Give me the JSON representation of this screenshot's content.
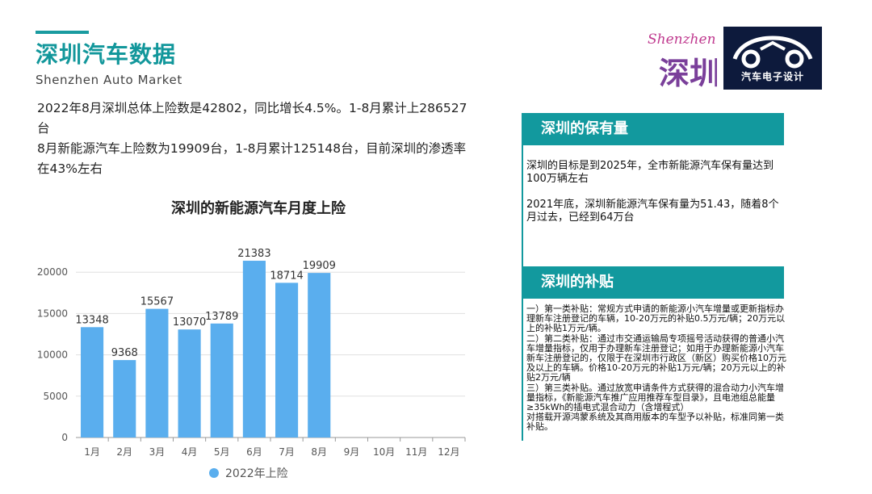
{
  "header": {
    "title": "深圳汽车数据",
    "subtitle": "Shenzhen Auto Market"
  },
  "summary": [
    "2022年8月深圳总体上险数是42802，同比增长4.5%。1-8月累计上286527台",
    "8月新能源汽车上险数为19909台，1-8月累计125148台，目前深圳的渗透率在43%左右"
  ],
  "logos": {
    "shenzhen_logo_text": "深圳",
    "shenzhen_logo_script": "Shenzhen",
    "brand_logo_text": "汽车电子设计"
  },
  "chart_data": {
    "type": "bar",
    "title": "深圳的新能源汽车月度上险",
    "categories": [
      "1月",
      "2月",
      "3月",
      "4月",
      "5月",
      "6月",
      "7月",
      "8月",
      "9月",
      "10月",
      "11月",
      "12月"
    ],
    "series": [
      {
        "name": "2022年上险",
        "values": [
          13348,
          9368,
          15567,
          13070,
          13789,
          21383,
          18714,
          19909,
          null,
          null,
          null,
          null
        ]
      }
    ],
    "ylim": [
      0,
      25000
    ],
    "yticks": [
      0,
      5000,
      10000,
      15000,
      20000
    ],
    "grid": true,
    "legend": "bottom",
    "colors": {
      "bar": "#5aaeee",
      "grid": "#e0e0e0",
      "axis": "#999999"
    }
  },
  "ownership": {
    "heading": "深圳的保有量",
    "paragraphs": [
      "深圳的目标是到2025年，全市新能源汽车保有量达到100万辆左右",
      "2021年底，深圳新能源汽车保有量为51.43，随着8个月过去，已经到64万台"
    ]
  },
  "subsidy": {
    "heading": "深圳的补贴",
    "paragraphs": [
      "一）第一类补贴：常规方式申请的新能源小汽车增量或更新指标办理新车注册登记的车辆，10-20万元的补贴0.5万元/辆；20万元以上的补贴1万元/辆。",
      "二）第二类补贴：通过市交通运输局专项摇号活动获得的普通小汽车增量指标，仅用于办理新车注册登记；如用于办理新能源小汽车新车注册登记的，仅限于在深圳市行政区（新区）购买价格10万元及以上的车辆。价格10-20万元的补贴1万元/辆；20万元以上的补贴2万元/辆",
      "三）第三类补贴。通过放宽申请条件方式获得的混合动力小汽车增量指标，《新能源汽车推广应用推荐车型目录》，且电池组总能量≥35kWh的插电式混合动力（含增程式）",
      "对搭载开源鸿蒙系统及其商用版本的车型予以补贴，标准同第一类补贴。"
    ]
  },
  "theme": {
    "accent": "#12999e",
    "navy": "#0d1a3c"
  }
}
